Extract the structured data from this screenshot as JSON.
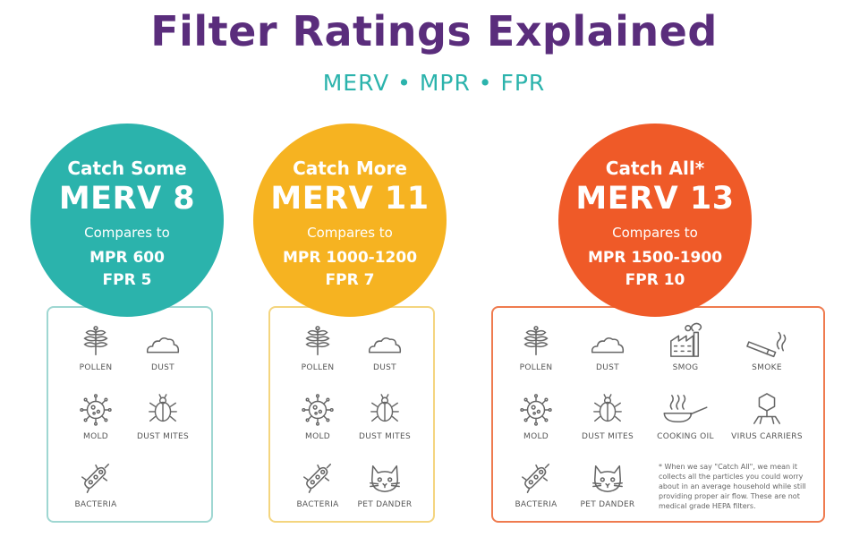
{
  "header": {
    "title": "Filter Ratings Explained",
    "subtitle": "MERV • MPR • FPR"
  },
  "colors": {
    "title": "#5a2d7c",
    "subtitle": "#2bb3ac",
    "teal": "#2bb3ac",
    "yellow": "#f6b321",
    "orange": "#ef5a28",
    "panel_teal": "#9fd7d2",
    "panel_yellow": "#f4d57f",
    "panel_orange": "#ef7b4f",
    "icon": "#666666"
  },
  "ratings": [
    {
      "catch": "Catch Some",
      "merv": "MERV 8",
      "compares": "Compares to",
      "mpr": "MPR 600",
      "fpr": "FPR 5",
      "items": [
        {
          "label": "POLLEN",
          "icon": "pollen-icon"
        },
        {
          "label": "DUST",
          "icon": "dust-icon"
        },
        {
          "label": "MOLD",
          "icon": "mold-icon"
        },
        {
          "label": "DUST MITES",
          "icon": "dust-mite-icon"
        },
        {
          "label": "BACTERIA",
          "icon": "bacteria-icon"
        }
      ]
    },
    {
      "catch": "Catch More",
      "merv": "MERV 11",
      "compares": "Compares to",
      "mpr": "MPR 1000-1200",
      "fpr": "FPR 7",
      "items": [
        {
          "label": "POLLEN",
          "icon": "pollen-icon"
        },
        {
          "label": "DUST",
          "icon": "dust-icon"
        },
        {
          "label": "MOLD",
          "icon": "mold-icon"
        },
        {
          "label": "DUST MITES",
          "icon": "dust-mite-icon"
        },
        {
          "label": "BACTERIA",
          "icon": "bacteria-icon"
        },
        {
          "label": "PET DANDER",
          "icon": "cat-icon"
        }
      ]
    },
    {
      "catch": "Catch All*",
      "merv": "MERV 13",
      "compares": "Compares to",
      "mpr": "MPR 1500-1900",
      "fpr": "FPR 10",
      "items": [
        {
          "label": "POLLEN",
          "icon": "pollen-icon"
        },
        {
          "label": "DUST",
          "icon": "dust-icon"
        },
        {
          "label": "SMOG",
          "icon": "factory-icon"
        },
        {
          "label": "SMOKE",
          "icon": "cigarette-icon"
        },
        {
          "label": "MOLD",
          "icon": "mold-icon"
        },
        {
          "label": "DUST MITES",
          "icon": "dust-mite-icon"
        },
        {
          "label": "COOKING OIL",
          "icon": "frying-pan-icon"
        },
        {
          "label": "VIRUS CARRIERS",
          "icon": "virus-icon"
        },
        {
          "label": "BACTERIA",
          "icon": "bacteria-icon"
        },
        {
          "label": "PET DANDER",
          "icon": "cat-icon"
        }
      ],
      "note": "* When we say \"Catch All\", we mean it collects all the particles you could worry about in an average household while still providing proper air flow. These are not medical grade HEPA filters."
    }
  ]
}
